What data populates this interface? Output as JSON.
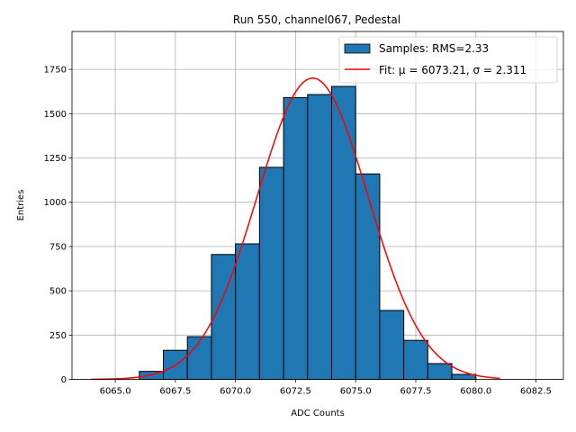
{
  "chart_data": {
    "type": "bar",
    "title": "Run 550, channel067, Pedestal",
    "xlabel": "ADC Counts",
    "ylabel": "Entries",
    "xlim": [
      6063.2,
      6083.64
    ],
    "ylim": [
      0,
      1964
    ],
    "grid": true,
    "legend_placement": "top-right",
    "bin_edges": [
      6066,
      6067,
      6068,
      6069,
      6070,
      6071,
      6072,
      6073,
      6074,
      6075,
      6076,
      6077,
      6078,
      6079,
      6080
    ],
    "values": [
      45,
      164,
      241,
      705,
      765,
      1197,
      1591,
      1608,
      1654,
      1160,
      389,
      220,
      89,
      28
    ],
    "bar_color": "#1f77b4",
    "fit": {
      "mu": 6073.21,
      "sigma": 2.311,
      "amplitude": 1701,
      "x_range": [
        6064,
        6081
      ],
      "color": "#ff0000"
    },
    "legend": [
      "Samples: RMS=2.33",
      "Fit: μ = 6073.21, σ = 2.311"
    ],
    "xticks": [
      6065.0,
      6067.5,
      6070.0,
      6072.5,
      6075.0,
      6077.5,
      6080.0,
      6082.5
    ],
    "xtick_labels": [
      "6065.0",
      "6067.5",
      "6070.0",
      "6072.5",
      "6075.0",
      "6077.5",
      "6080.0",
      "6082.5"
    ],
    "yticks": [
      0,
      250,
      500,
      750,
      1000,
      1250,
      1500,
      1750
    ],
    "ytick_labels": [
      "0",
      "250",
      "500",
      "750",
      "1000",
      "1250",
      "1500",
      "1750"
    ]
  }
}
